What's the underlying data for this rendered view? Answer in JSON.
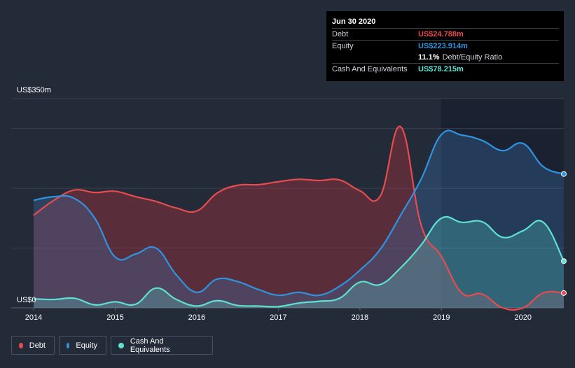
{
  "tooltip": {
    "date": "Jun 30 2020",
    "rows": [
      {
        "label": "Debt",
        "value": "US$24.788m",
        "color": "#e64c4f"
      },
      {
        "label": "Equity",
        "value": "US$223.914m",
        "color": "#2f94e0"
      },
      {
        "label": "",
        "value": "11.1%",
        "extra": "Debt/Equity Ratio",
        "color": "#ffffff"
      },
      {
        "label": "Cash And Equivalents",
        "value": "US$78.215m",
        "color": "#5de1d0"
      }
    ]
  },
  "legend": [
    {
      "label": "Debt",
      "color": "#e64c4f"
    },
    {
      "label": "Equity",
      "color": "#2f94e0"
    },
    {
      "label": "Cash And Equivalents",
      "color": "#5de1d0"
    }
  ],
  "chart_data": {
    "type": "area",
    "y_top_label": "US$350m",
    "y_bottom_label": "US$0",
    "ylim": [
      0,
      350
    ],
    "xlim": [
      2014.0,
      2020.5
    ],
    "x_ticks": [
      "2014",
      "2015",
      "2016",
      "2017",
      "2018",
      "2019",
      "2020"
    ],
    "grid": true,
    "series": [
      {
        "name": "Debt",
        "color": "#e64c4f",
        "x": [
          2014.0,
          2014.25,
          2014.5,
          2014.75,
          2015.0,
          2015.25,
          2015.5,
          2015.75,
          2016.0,
          2016.25,
          2016.5,
          2016.75,
          2017.0,
          2017.25,
          2017.5,
          2017.75,
          2018.0,
          2018.25,
          2018.5,
          2018.75,
          2019.0,
          2019.25,
          2019.5,
          2019.75,
          2020.0,
          2020.25,
          2020.5
        ],
        "values": [
          155,
          180,
          197,
          193,
          195,
          186,
          178,
          167,
          162,
          192,
          205,
          206,
          211,
          215,
          213,
          214,
          196,
          187,
          303,
          139,
          86,
          25,
          23,
          0,
          0,
          25,
          24.8
        ]
      },
      {
        "name": "Equity",
        "color": "#2f94e0",
        "x": [
          2014.0,
          2014.25,
          2014.5,
          2014.75,
          2015.0,
          2015.25,
          2015.5,
          2015.75,
          2016.0,
          2016.25,
          2016.5,
          2016.75,
          2017.0,
          2017.25,
          2017.5,
          2017.75,
          2018.0,
          2018.25,
          2018.5,
          2018.75,
          2019.0,
          2019.25,
          2019.5,
          2019.75,
          2020.0,
          2020.25,
          2020.5
        ],
        "values": [
          180,
          186,
          183,
          150,
          85,
          90,
          100,
          55,
          26,
          48,
          44,
          31,
          21,
          26,
          21,
          36,
          63,
          98,
          155,
          215,
          290,
          289,
          280,
          263,
          275,
          236,
          223.9
        ]
      },
      {
        "name": "Cash And Equivalents",
        "color": "#5de1d0",
        "x": [
          2014.0,
          2014.25,
          2014.5,
          2014.75,
          2015.0,
          2015.25,
          2015.5,
          2015.75,
          2016.0,
          2016.25,
          2016.5,
          2016.75,
          2017.0,
          2017.25,
          2017.5,
          2017.75,
          2018.0,
          2018.25,
          2018.5,
          2018.75,
          2019.0,
          2019.25,
          2019.5,
          2019.75,
          2020.0,
          2020.25,
          2020.5
        ],
        "values": [
          15,
          14,
          16,
          5,
          10,
          6,
          33,
          14,
          3,
          12,
          4,
          3,
          2,
          8,
          11,
          16,
          43,
          39,
          67,
          105,
          150,
          143,
          144,
          118,
          129,
          143,
          78.2
        ]
      }
    ]
  }
}
